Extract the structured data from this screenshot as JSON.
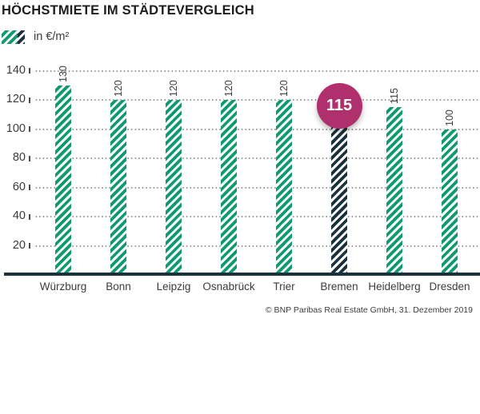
{
  "header": {
    "title": "HÖCHSTMIETE IM STÄDTEVERGLEICH"
  },
  "legend": {
    "label": "in €/m²"
  },
  "footer": {
    "source": "© BNP Paribas Real Estate GmbH, 31. Dezember 2019"
  },
  "chart_data": {
    "type": "bar",
    "title": "HÖCHSTMIETE IM STÄDTEVERGLEICH",
    "unit_label": "in €/m²",
    "categories": [
      "Würzburg",
      "Bonn",
      "Leipzig",
      "Osnabrück",
      "Trier",
      "Bremen",
      "Heidelberg",
      "Dresden"
    ],
    "values": [
      130,
      120,
      120,
      120,
      120,
      115,
      115,
      100
    ],
    "highlight_index": 5,
    "highlight_label": "115",
    "yticks": [
      20,
      40,
      60,
      80,
      100,
      120,
      140
    ],
    "ylim": [
      0,
      145
    ],
    "grid": "dotted-horizontal",
    "legend_position": "top-left",
    "bar_style": "diagonal-hatch",
    "colors": {
      "bar": "#0d9b6f",
      "highlight_bar": "#19323e",
      "highlight_circle": "#b02f6d",
      "axis": "#19323e",
      "text": "#3c3c3b",
      "grid_dot": "#8d8d8d"
    },
    "source": "© BNP Paribas Real Estate GmbH, 31. Dezember 2019"
  }
}
